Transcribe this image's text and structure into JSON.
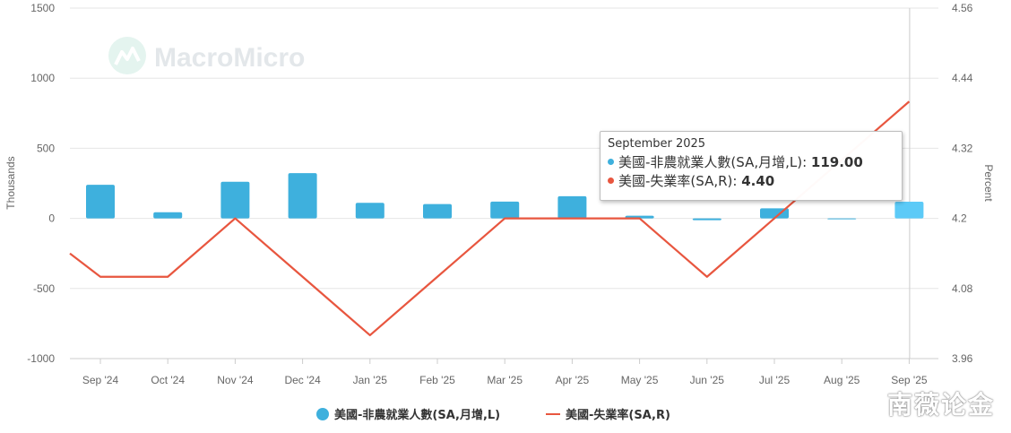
{
  "watermark": "MacroMicro",
  "corner_watermark": "南薇论金",
  "tooltip": {
    "title": "September 2025",
    "rows": [
      {
        "label": "美國-非農就業人數(SA,月增,L): ",
        "value": "119.00",
        "color": "#3eb0dd"
      },
      {
        "label": "美國-失業率(SA,R): ",
        "value": "4.40",
        "color": "#e8563f"
      }
    ]
  },
  "legend": [
    {
      "label": "美國-非農就業人數(SA,月增,L)",
      "color": "#3eb0dd",
      "shape": "circle"
    },
    {
      "label": "美國-失業率(SA,R)",
      "color": "#e8563f",
      "shape": "line"
    }
  ],
  "colors": {
    "bars": "#3eb0dd",
    "bar_highlight": "#5ccaf7",
    "line": "#e8563f",
    "grid": "#e6e6e6"
  },
  "chart_data": {
    "type": "bar+line",
    "categories": [
      "Sep '24",
      "Oct '24",
      "Nov '24",
      "Dec '24",
      "Jan '25",
      "Feb '25",
      "Mar '25",
      "Apr '25",
      "May '25",
      "Jun '25",
      "Jul '25",
      "Aug '25",
      "Sep '25"
    ],
    "series": [
      {
        "name": "美國-非農就業人數(SA,月增,L)",
        "type": "bar",
        "axis": "left",
        "values": [
          240,
          44,
          261,
          323,
          111,
          102,
          120,
          158,
          19,
          -13,
          72,
          -4,
          119
        ]
      },
      {
        "name": "美國-失業率(SA,R)",
        "type": "line",
        "axis": "right",
        "values": [
          4.1,
          4.1,
          4.2,
          4.1,
          4.0,
          4.1,
          4.2,
          4.2,
          4.2,
          4.1,
          4.2,
          4.3,
          4.4
        ],
        "lead_in_value": 4.14
      }
    ],
    "y_left": {
      "label": "Thousands",
      "ticks": [
        "1500",
        "1000",
        "500",
        "0",
        "-500",
        "-1000"
      ],
      "range": [
        -1000,
        1500
      ]
    },
    "y_right": {
      "label": "Percent",
      "ticks": [
        "4.56",
        "4.44",
        "4.32",
        "4.2",
        "4.08",
        "3.96"
      ],
      "range": [
        3.96,
        4.56
      ]
    },
    "grid": true,
    "legend_position": "bottom"
  }
}
